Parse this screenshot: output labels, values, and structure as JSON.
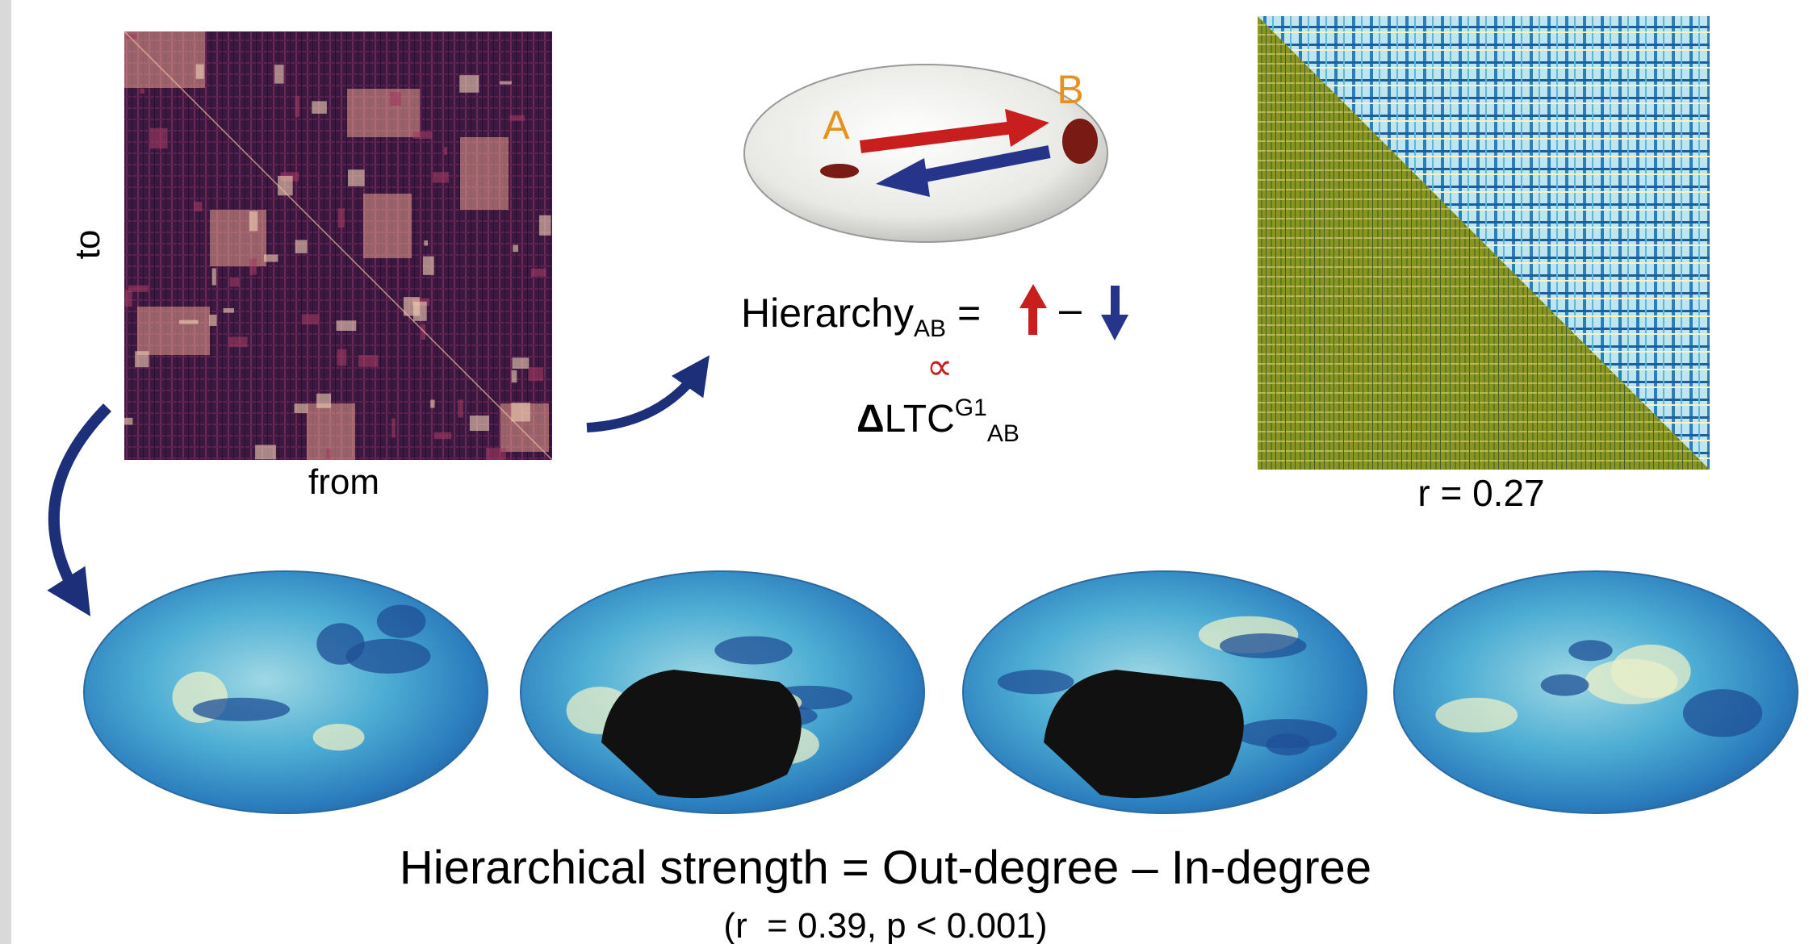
{
  "figure": {
    "matrix_axis_labels": {
      "to": "to",
      "from": "from"
    },
    "regions": {
      "a": "A",
      "b": "B"
    },
    "equation": {
      "lhs": "Hierarchy",
      "lhs_subscript": "AB",
      "equals": "=",
      "minus": "–",
      "proportional": "∝",
      "delta": "Δ",
      "ltc": "LTC",
      "superscript": "G1",
      "subscript": "AB"
    },
    "correlation_label": "r = 0.27",
    "caption": {
      "title": "Hierarchical strength = Out-degree – In-degree",
      "stats": "(r  = 0.39, p < 0.001)"
    }
  }
}
